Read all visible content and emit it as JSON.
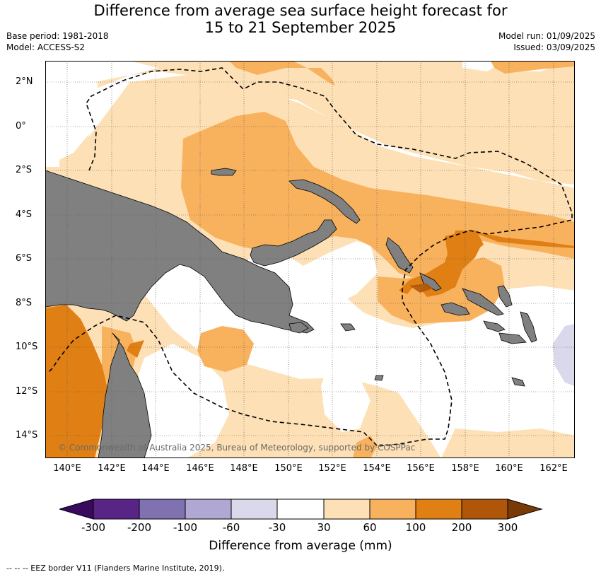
{
  "title_line1": "Difference from average sea surface height forecast for",
  "title_line2": "15 to 21 September 2025",
  "base_period": "Base period: 1981-2018",
  "model": "Model: ACCESS-S2",
  "model_run": "Model run: 01/09/2025",
  "issued": "Issued: 03/09/2025",
  "lat_labels": [
    "2°N",
    "0°",
    "2°S",
    "4°S",
    "6°S",
    "8°S",
    "10°S",
    "12°S",
    "14°S"
  ],
  "lon_labels": [
    "140°E",
    "142°E",
    "144°E",
    "146°E",
    "148°E",
    "150°E",
    "152°E",
    "154°E",
    "156°E",
    "158°E",
    "160°E",
    "162°E"
  ],
  "copyright": "© Commonwealth of Australia 2025, Bureau of Meteorology, supported by COSPPac",
  "colorbar": {
    "ticks": [
      "-300",
      "-200",
      "-100",
      "-60",
      "-30",
      "30",
      "60",
      "100",
      "200",
      "300"
    ],
    "colors": [
      "#3a0a5e",
      "#582587",
      "#8071b0",
      "#b0a8d2",
      "#d9d9eb",
      "#ffffff",
      "#fde0b5",
      "#f8b25e",
      "#e07f14",
      "#b05608",
      "#7a3a06"
    ],
    "label": "Difference from average (mm)"
  },
  "legend_note": "--  --  -- EEZ border V11 (Flanders Marine Institute, 2019).",
  "land_color": "#808080",
  "eez_style": "black dashed line"
}
